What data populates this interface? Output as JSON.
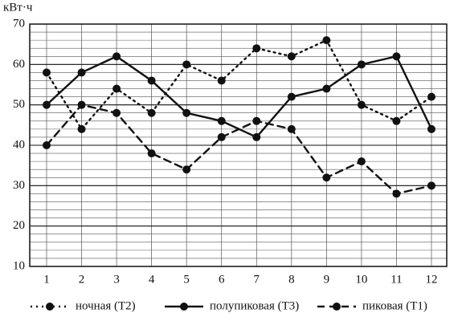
{
  "chart_data": {
    "type": "line",
    "y_label": "кВт·ч",
    "categories": [
      "1",
      "2",
      "3",
      "4",
      "5",
      "6",
      "7",
      "8",
      "9",
      "10",
      "11",
      "12"
    ],
    "series": [
      {
        "name": "ночная (Т2)",
        "color": "#111111",
        "line_style": "dotted",
        "values": [
          58,
          44,
          54,
          48,
          60,
          56,
          64,
          62,
          66,
          50,
          46,
          52
        ]
      },
      {
        "name": "полупиковая (Т3)",
        "color": "#111111",
        "line_style": "solid",
        "values": [
          50,
          58,
          62,
          56,
          48,
          46,
          42,
          52,
          54,
          60,
          62,
          44
        ]
      },
      {
        "name": "пиковая (Т1)",
        "color": "#111111",
        "line_style": "dashed",
        "values": [
          40,
          50,
          48,
          38,
          34,
          42,
          46,
          44,
          32,
          36,
          28,
          30
        ]
      }
    ],
    "ylim": [
      10,
      70
    ],
    "yticks": [
      10,
      20,
      30,
      40,
      50,
      60,
      70
    ],
    "grid": true
  }
}
